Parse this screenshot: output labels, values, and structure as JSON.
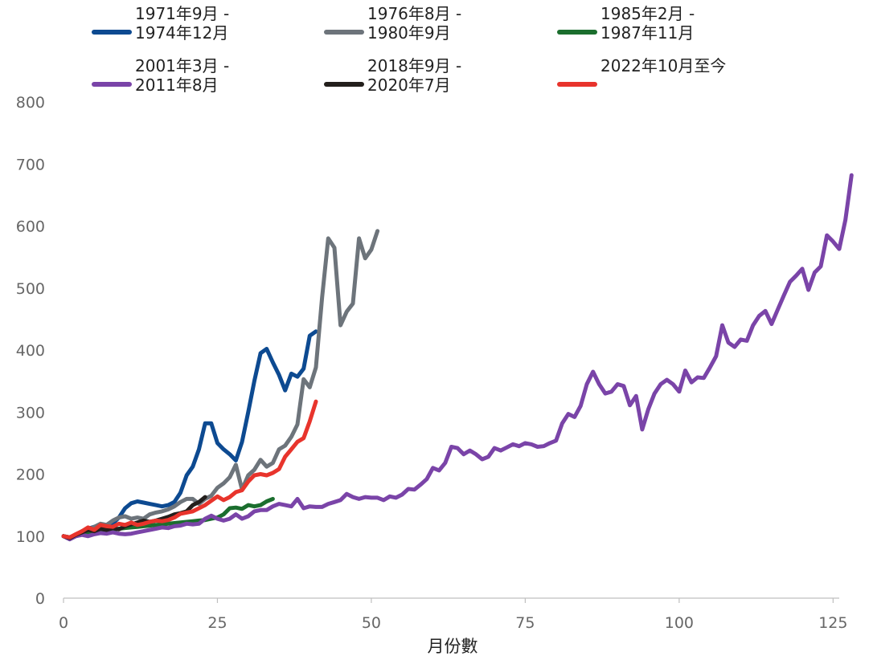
{
  "chart_data": {
    "type": "line",
    "title": "",
    "xlabel": "月份數",
    "ylabel": "",
    "xlim": [
      0,
      126
    ],
    "ylim": [
      0,
      800
    ],
    "x_ticks": [
      0,
      25,
      50,
      75,
      100,
      125
    ],
    "y_ticks": [
      0,
      100,
      200,
      300,
      400,
      500,
      600,
      700,
      800
    ],
    "grid": false,
    "legend_position": "top",
    "series": [
      {
        "name": "1971年9月 -\n1974年12月",
        "color": "#0d4a91",
        "values": [
          100,
          98,
          102,
          108,
          112,
          115,
          118,
          116,
          120,
          130,
          145,
          153,
          156,
          154,
          152,
          150,
          148,
          150,
          155,
          170,
          198,
          212,
          240,
          282,
          282,
          250,
          240,
          232,
          222,
          252,
          300,
          350,
          395,
          402,
          380,
          360,
          335,
          362,
          357,
          370,
          423,
          430
        ]
      },
      {
        "name": "1976年8月 -\n1980年9月",
        "color": "#6d747b",
        "values": [
          100,
          95,
          100,
          105,
          110,
          115,
          120,
          118,
          125,
          130,
          132,
          128,
          130,
          128,
          135,
          138,
          140,
          143,
          148,
          155,
          160,
          160,
          152,
          160,
          165,
          178,
          185,
          195,
          215,
          175,
          198,
          207,
          223,
          212,
          218,
          240,
          246,
          260,
          280,
          353,
          340,
          372,
          485,
          580,
          565,
          440,
          462,
          475,
          580,
          548,
          562,
          592
        ]
      },
      {
        "name": "1985年2月 -\n1987年11月",
        "color": "#1b6e2e",
        "values": [
          100,
          98,
          100,
          103,
          105,
          107,
          108,
          109,
          110,
          112,
          113,
          114,
          115,
          116,
          117,
          118,
          119,
          120,
          121,
          122,
          123,
          124,
          125,
          126,
          128,
          130,
          135,
          145,
          146,
          144,
          150,
          148,
          150,
          156,
          160
        ]
      },
      {
        "name": "2001年3月 -\n2011年8月",
        "color": "#7a44a8",
        "values": [
          100,
          95,
          100,
          102,
          100,
          103,
          105,
          104,
          106,
          104,
          103,
          104,
          106,
          108,
          110,
          112,
          114,
          113,
          116,
          117,
          120,
          119,
          120,
          128,
          133,
          128,
          125,
          128,
          135,
          128,
          132,
          140,
          142,
          142,
          148,
          152,
          150,
          148,
          160,
          145,
          148,
          147,
          147,
          152,
          155,
          158,
          168,
          163,
          160,
          163,
          162,
          162,
          158,
          164,
          162,
          167,
          176,
          175,
          183,
          192,
          210,
          206,
          218,
          244,
          242,
          232,
          238,
          232,
          224,
          228,
          242,
          238,
          243,
          248,
          245,
          250,
          248,
          244,
          245,
          250,
          254,
          282,
          297,
          292,
          310,
          345,
          365,
          345,
          330,
          333,
          345,
          342,
          311,
          326,
          272,
          305,
          330,
          345,
          352,
          345,
          333,
          367,
          348,
          356,
          355,
          372,
          390,
          440,
          412,
          405,
          417,
          415,
          440,
          455,
          463,
          442,
          465,
          488,
          510,
          520,
          531,
          497,
          525,
          535,
          585,
          575,
          563,
          610,
          682
        ]
      },
      {
        "name": "2018年9月 -\n2020年7月",
        "color": "#231f1c",
        "values": [
          100,
          97,
          102,
          106,
          110,
          108,
          112,
          110,
          113,
          111,
          116,
          119,
          122,
          125,
          123,
          125,
          128,
          131,
          135,
          137,
          140,
          150,
          155,
          163
        ]
      },
      {
        "name": "2022年10月至今",
        "color": "#e8342c",
        "values": [
          100,
          98,
          103,
          108,
          114,
          110,
          118,
          116,
          115,
          120,
          118,
          122,
          118,
          120,
          123,
          125,
          124,
          126,
          130,
          136,
          138,
          140,
          145,
          150,
          157,
          164,
          158,
          163,
          171,
          174,
          188,
          198,
          200,
          198,
          202,
          208,
          228,
          240,
          252,
          258,
          285,
          317
        ]
      }
    ]
  }
}
